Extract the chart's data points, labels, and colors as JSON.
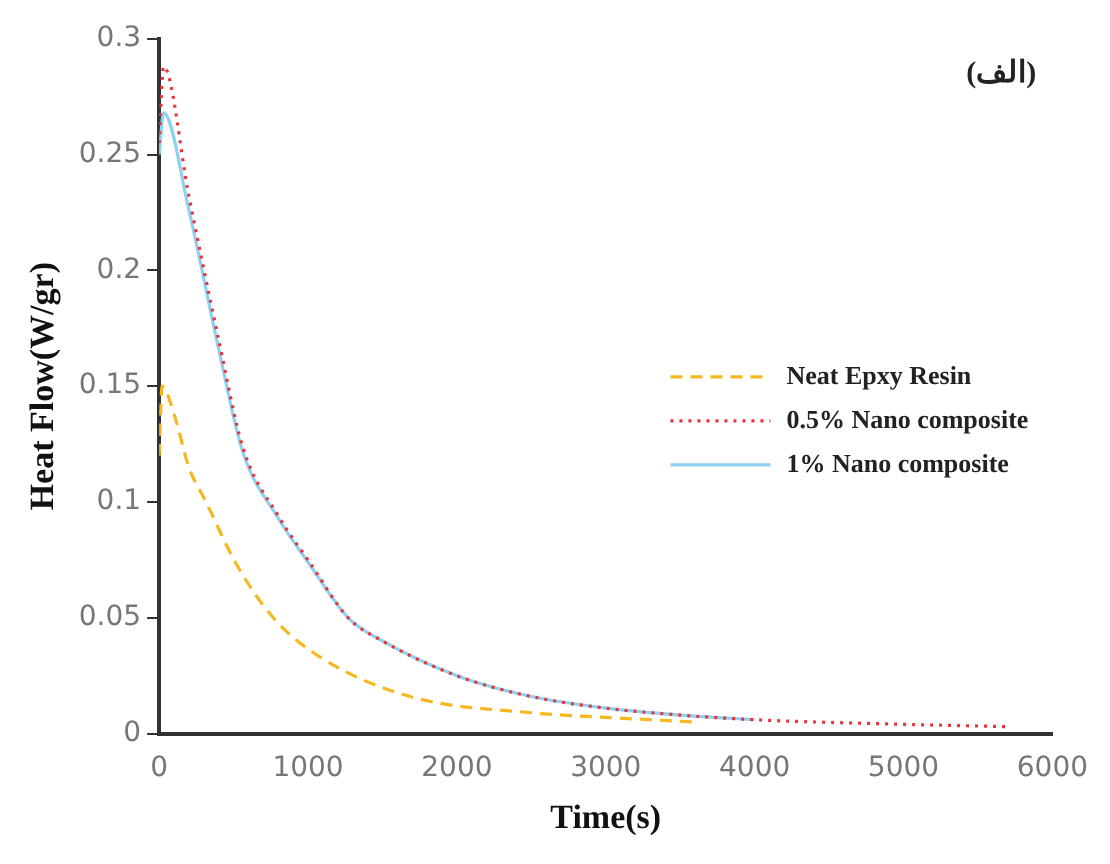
{
  "chart_data": {
    "type": "line",
    "xlabel": "Time(s)",
    "ylabel": "Heat Flow(W/gr)",
    "annotations": [
      "(الف)"
    ],
    "xlim": [
      0,
      6000
    ],
    "xticks": [
      0,
      1000,
      2000,
      3000,
      4000,
      5000,
      6000
    ],
    "ylim": [
      0,
      0.3
    ],
    "yticks": [
      0,
      0.05,
      0.1,
      0.15,
      0.2,
      0.25,
      0.3
    ],
    "grid": false,
    "legend": "right",
    "marker": "none",
    "series": [
      {
        "name": "Neat Epxy Resin",
        "color": "#f5b81e",
        "line_style": "dashed",
        "x": [
          0,
          20,
          100,
          200,
          315,
          520,
          767,
          1082,
          1685,
          2500,
          3000,
          3600
        ],
        "values": [
          0.12,
          0.15,
          0.138,
          0.115,
          0.1,
          0.073,
          0.05,
          0.033,
          0.016,
          0.009,
          0.007,
          0.005
        ]
      },
      {
        "name": "0.5% Nano composite",
        "color": "#e8343c",
        "line_style": "dotted",
        "x": [
          0,
          30,
          200,
          400,
          560,
          800,
          1000,
          1270,
          1500,
          2000,
          2500,
          3000,
          3500,
          4000,
          5000,
          5700
        ],
        "values": [
          0.255,
          0.288,
          0.232,
          0.17,
          0.124,
          0.094,
          0.075,
          0.05,
          0.04,
          0.025,
          0.016,
          0.011,
          0.008,
          0.006,
          0.004,
          0.003
        ]
      },
      {
        "name": "1% Nano composite",
        "color": "#8fd0f0",
        "line_style": "solid",
        "x": [
          0,
          30,
          200,
          400,
          560,
          800,
          1000,
          1270,
          1500,
          2000,
          2500,
          3000,
          3500,
          4000
        ],
        "values": [
          0.25,
          0.268,
          0.226,
          0.166,
          0.122,
          0.093,
          0.074,
          0.05,
          0.04,
          0.025,
          0.016,
          0.011,
          0.008,
          0.006
        ]
      }
    ]
  }
}
